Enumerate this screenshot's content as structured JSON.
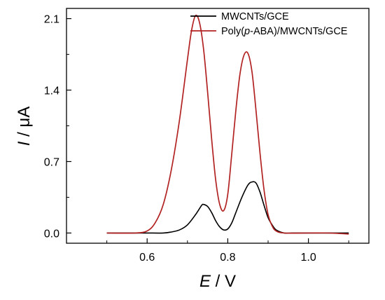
{
  "chart_data": {
    "type": "line",
    "xlim": [
      0.4,
      1.15
    ],
    "ylim": [
      -0.1,
      2.2
    ],
    "x_ticks": [
      0.6,
      0.8,
      1.0
    ],
    "x_tick_labels": [
      "0.6",
      "0.8",
      "1.0"
    ],
    "y_ticks": [
      0.0,
      0.7,
      1.4,
      2.1
    ],
    "y_tick_labels": [
      "0.0",
      "0.7",
      "1.4",
      "2.1"
    ],
    "xlabel": {
      "symbol": "E",
      "unit": " / V"
    },
    "ylabel": {
      "symbol": "I",
      "unit": " / μA"
    },
    "grid": false,
    "legend_position": "top-right",
    "series": [
      {
        "name": "MWCNTs/GCE",
        "color": "#000000",
        "points": [
          [
            0.5,
            0.0
          ],
          [
            0.56,
            0.0
          ],
          [
            0.6,
            0.0
          ],
          [
            0.64,
            0.0
          ],
          [
            0.66,
            0.01
          ],
          [
            0.68,
            0.03
          ],
          [
            0.7,
            0.08
          ],
          [
            0.72,
            0.18
          ],
          [
            0.735,
            0.27
          ],
          [
            0.74,
            0.28
          ],
          [
            0.75,
            0.26
          ],
          [
            0.76,
            0.2
          ],
          [
            0.77,
            0.12
          ],
          [
            0.78,
            0.06
          ],
          [
            0.79,
            0.03
          ],
          [
            0.8,
            0.04
          ],
          [
            0.81,
            0.1
          ],
          [
            0.82,
            0.2
          ],
          [
            0.835,
            0.35
          ],
          [
            0.85,
            0.47
          ],
          [
            0.86,
            0.5
          ],
          [
            0.87,
            0.49
          ],
          [
            0.88,
            0.4
          ],
          [
            0.89,
            0.27
          ],
          [
            0.9,
            0.15
          ],
          [
            0.91,
            0.08
          ],
          [
            0.92,
            0.03
          ],
          [
            0.94,
            0.0
          ],
          [
            0.96,
            0.0
          ],
          [
            1.0,
            0.0
          ],
          [
            1.05,
            0.0
          ],
          [
            1.1,
            0.0
          ]
        ]
      },
      {
        "name": "Poly(p-ABA)/MWCNTs/GCE",
        "name_parts": [
          "Poly(",
          "p",
          "-ABA)/MWCNTs/GCE"
        ],
        "color": "#B22222",
        "points": [
          [
            0.5,
            0.0
          ],
          [
            0.57,
            0.0
          ],
          [
            0.6,
            0.02
          ],
          [
            0.62,
            0.1
          ],
          [
            0.64,
            0.28
          ],
          [
            0.66,
            0.62
          ],
          [
            0.68,
            1.1
          ],
          [
            0.7,
            1.7
          ],
          [
            0.71,
            1.98
          ],
          [
            0.72,
            2.13
          ],
          [
            0.73,
            2.06
          ],
          [
            0.74,
            1.8
          ],
          [
            0.75,
            1.38
          ],
          [
            0.76,
            0.92
          ],
          [
            0.77,
            0.52
          ],
          [
            0.78,
            0.28
          ],
          [
            0.79,
            0.22
          ],
          [
            0.8,
            0.38
          ],
          [
            0.81,
            0.78
          ],
          [
            0.82,
            1.2
          ],
          [
            0.83,
            1.55
          ],
          [
            0.84,
            1.74
          ],
          [
            0.85,
            1.76
          ],
          [
            0.86,
            1.58
          ],
          [
            0.87,
            1.2
          ],
          [
            0.88,
            0.78
          ],
          [
            0.89,
            0.42
          ],
          [
            0.9,
            0.18
          ],
          [
            0.91,
            0.07
          ],
          [
            0.92,
            0.02
          ],
          [
            0.94,
            0.0
          ],
          [
            1.0,
            0.0
          ],
          [
            1.05,
            0.0
          ],
          [
            1.1,
            -0.01
          ]
        ]
      }
    ]
  }
}
